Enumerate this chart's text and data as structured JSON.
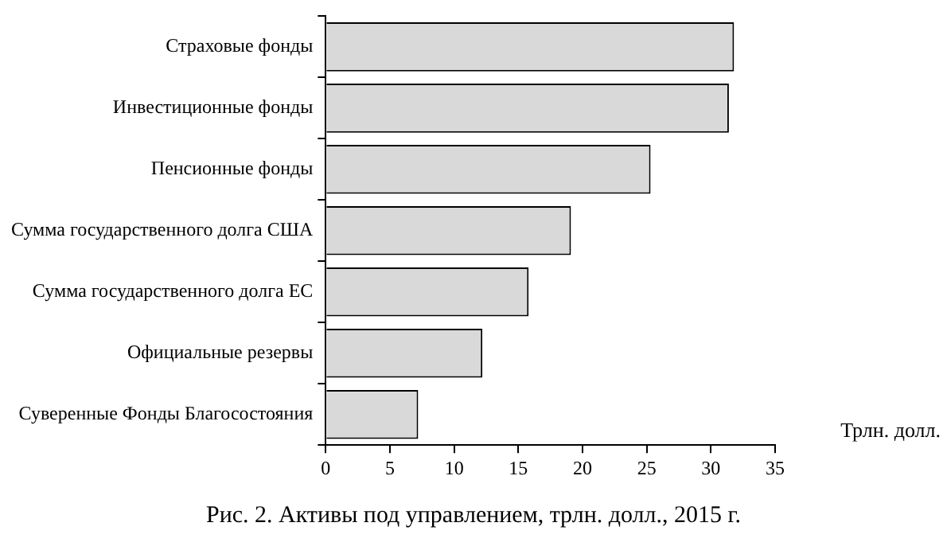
{
  "chart_data": {
    "type": "bar",
    "orientation": "horizontal",
    "xlabel": "Трлн. долл.",
    "categories": [
      "Страховые фонды",
      "Инвестиционные фонды",
      "Пенсионные фонды",
      "Сумма государственного долга США",
      "Сумма государственного долга ЕС",
      "Официальные резервы",
      "Суверенные Фонды Благосостояния"
    ],
    "values": [
      31.8,
      31.4,
      25.3,
      19.1,
      15.8,
      12.2,
      7.2
    ],
    "color": "#d9d9d9",
    "xlim": [
      0,
      35
    ],
    "xticks": [
      0,
      5,
      10,
      15,
      20,
      25,
      30,
      35
    ],
    "grid": false,
    "legend": false,
    "annotations": [
      "Рис. 2. Активы под управлением, трлн. долл., 2015 г."
    ]
  }
}
